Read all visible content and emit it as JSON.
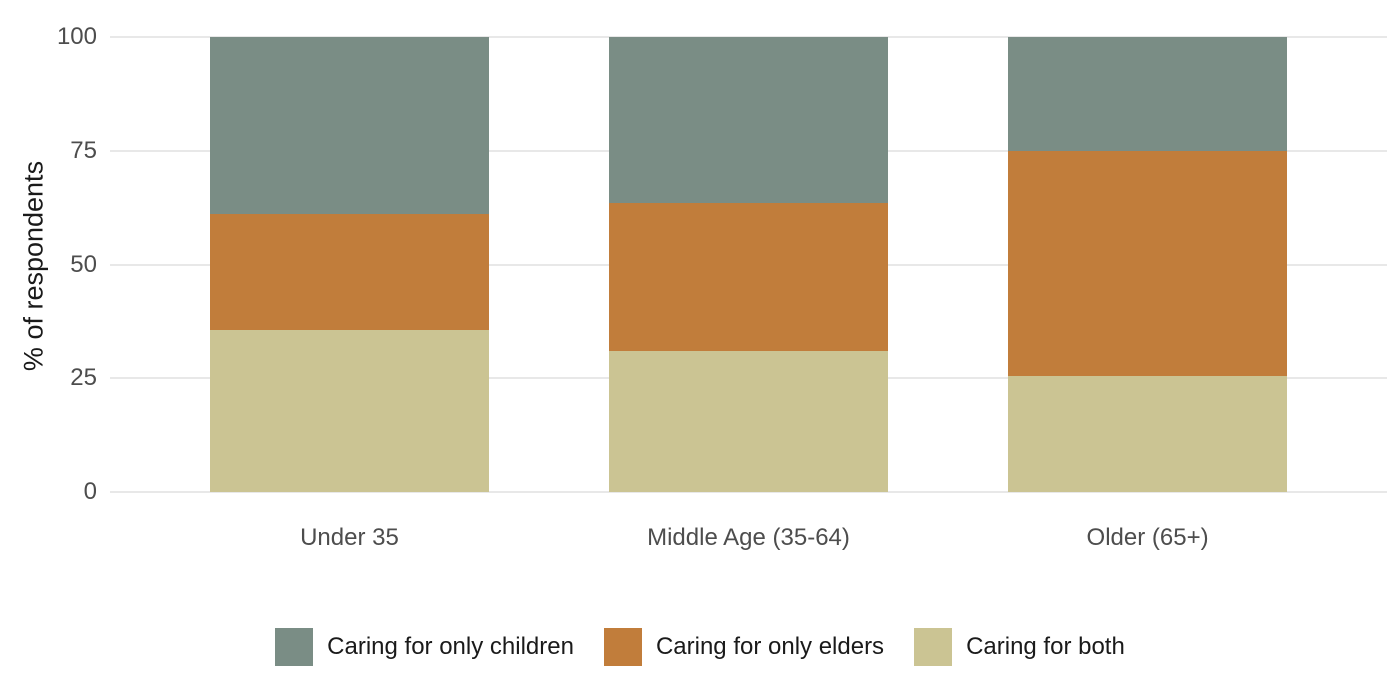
{
  "chart_data": {
    "type": "bar",
    "variant": "stacked",
    "title": "",
    "xlabel": "",
    "ylabel": "% of respondents",
    "ylim": [
      0,
      100
    ],
    "yticks": [
      0,
      25,
      50,
      75,
      100
    ],
    "grid": "horizontal",
    "legend_position": "bottom",
    "categories": [
      "Under 35",
      "Middle Age (35-64)",
      "Older (65+)"
    ],
    "series": [
      {
        "name": "Caring for both",
        "color": "#CBC493",
        "values": [
          35.5,
          31.0,
          25.5
        ]
      },
      {
        "name": "Caring for only elders",
        "color": "#C17D3B",
        "values": [
          25.5,
          32.5,
          49.5
        ]
      },
      {
        "name": "Caring for only children",
        "color": "#7A8D85",
        "values": [
          39.0,
          36.5,
          25.0
        ]
      }
    ],
    "stack_order": "series listed bottom-to-top",
    "legend_order": [
      "Caring for only children",
      "Caring for only elders",
      "Caring for both"
    ]
  },
  "colors": {
    "background": "#FFFFFF",
    "gridline": "#E8E8E8",
    "axis_text": "#4D4D4D",
    "axis_title_text": "#1A1A1A",
    "legend_text": "#1A1A1A"
  }
}
